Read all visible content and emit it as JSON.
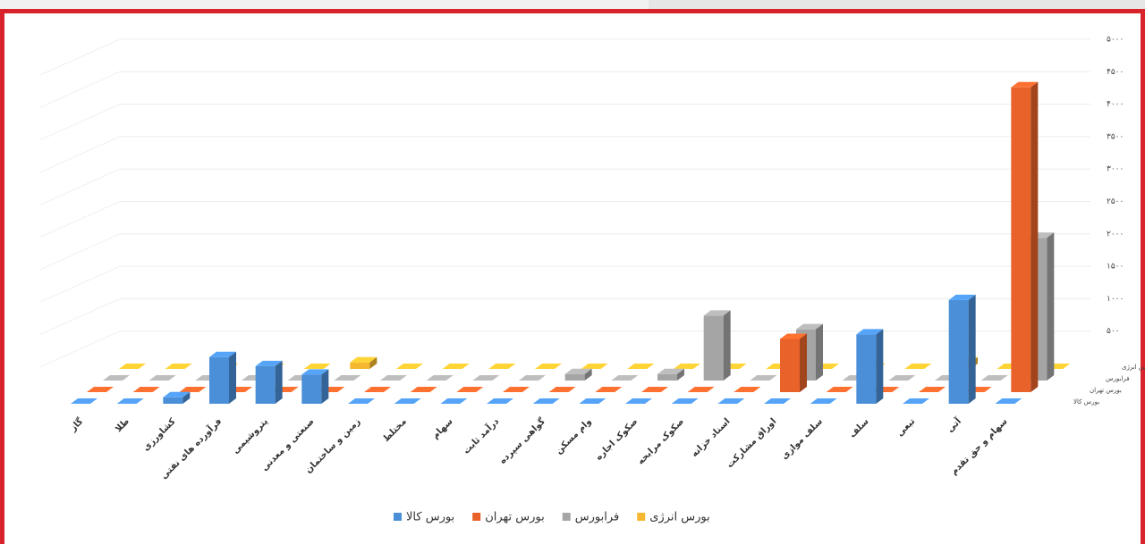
{
  "chart_data": {
    "type": "bar3d",
    "categories": [
      "گاز",
      "طلا",
      "کشاورزی",
      "فرآورده های نفتی",
      "پتروشیمی",
      "صنعتی و معدنی",
      "زمین و ساختمان",
      "مختلط",
      "سهام",
      "درآمد ثابت",
      "گواهی سپرده",
      "وام مسکن",
      "صکوک اجاره",
      "صکوک مرابحه",
      "اسناد خزانه",
      "اوراق مشارکت",
      "سلف موازی",
      "سلف",
      "تبعی",
      "آتی",
      "سهام و حق تقدم"
    ],
    "series": [
      {
        "name": "بورس کالا",
        "color": "#4a8fd8",
        "values": [
          0,
          0,
          100,
          720,
          580,
          450,
          0,
          0,
          0,
          0,
          0,
          0,
          0,
          0,
          0,
          0,
          0,
          1070,
          0,
          1600,
          0
        ]
      },
      {
        "name": "بورس تهران",
        "color": "#e8622a",
        "values": [
          0,
          0,
          0,
          0,
          0,
          0,
          0,
          0,
          0,
          0,
          0,
          0,
          0,
          0,
          0,
          820,
          0,
          0,
          0,
          0,
          4700
        ]
      },
      {
        "name": "فرابورس",
        "color": "#a5a5a5",
        "values": [
          0,
          0,
          0,
          0,
          0,
          0,
          0,
          0,
          0,
          0,
          100,
          0,
          100,
          1000,
          0,
          790,
          0,
          0,
          0,
          0,
          2200
        ]
      },
      {
        "name": "بورس انرژی",
        "color": "#f5b82e",
        "values": [
          0,
          0,
          0,
          0,
          0,
          100,
          0,
          0,
          0,
          0,
          0,
          0,
          0,
          0,
          0,
          0,
          0,
          0,
          100,
          0,
          0
        ]
      }
    ],
    "ylim": [
      0,
      5000
    ],
    "yticks": [
      {
        "value": 500,
        "label": "۵۰۰"
      },
      {
        "value": 1000,
        "label": "۱۰۰۰"
      },
      {
        "value": 1500,
        "label": "۱۵۰۰"
      },
      {
        "value": 2000,
        "label": "۲۰۰۰"
      },
      {
        "value": 2500,
        "label": "۲۵۰۰"
      },
      {
        "value": 3000,
        "label": "۳۰۰۰"
      },
      {
        "value": 3500,
        "label": "۳۵۰۰"
      },
      {
        "value": 4000,
        "label": "۴۰۰۰"
      },
      {
        "value": 4500,
        "label": "۴۵۰۰"
      },
      {
        "value": 5000,
        "label": "۵۰۰۰"
      }
    ],
    "grid": true
  }
}
